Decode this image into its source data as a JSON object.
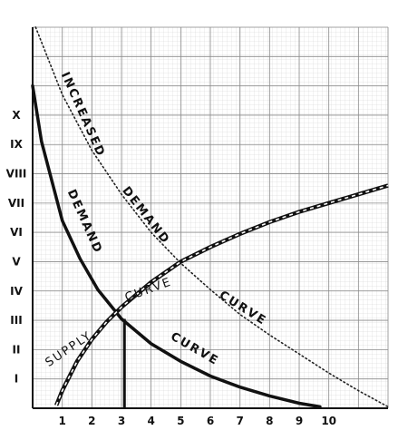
{
  "chart_data": {
    "type": "line",
    "title": "",
    "xlabel": "",
    "ylabel": "",
    "x_ticks": [
      "1",
      "2",
      "3",
      "4",
      "5",
      "6",
      "7",
      "8",
      "9",
      "10"
    ],
    "y_ticks": [
      "I",
      "II",
      "III",
      "IV",
      "V",
      "VI",
      "VII",
      "VIII",
      "IX",
      "X"
    ],
    "xlim": [
      0,
      12
    ],
    "ylim": [
      0,
      13
    ],
    "grid": true,
    "legend": "none",
    "series": [
      {
        "style": "solid",
        "x": [
          0,
          0.3,
          1,
          1.6,
          2.2,
          3,
          4,
          5,
          6,
          7,
          8,
          9,
          9.7
        ],
        "y": [
          11,
          9.1,
          6.4,
          5.1,
          4.05,
          3.05,
          2.2,
          1.6,
          1.1,
          0.72,
          0.42,
          0.17,
          0.05
        ]
      },
      {
        "style": "dotted",
        "x": [
          0.1,
          1,
          2,
          3,
          4,
          5,
          6,
          7,
          8,
          9,
          10,
          11,
          12
        ],
        "y": [
          13,
          10.7,
          8.8,
          7.3,
          6,
          4.95,
          4.05,
          3.2,
          2.5,
          1.85,
          1.2,
          0.6,
          0.05
        ]
      },
      {
        "style": "hatched",
        "x": [
          0.8,
          1,
          1.5,
          2,
          2.5,
          3,
          4,
          5,
          6,
          7,
          8,
          9,
          10,
          11,
          12
        ],
        "y": [
          0.1,
          0.6,
          1.6,
          2.35,
          2.95,
          3.45,
          4.3,
          5,
          5.5,
          5.95,
          6.35,
          6.7,
          7,
          7.3,
          7.6
        ]
      }
    ],
    "equilibrium": {
      "x": 3.1,
      "y": 3.05
    },
    "annotations": [
      {
        "id": "increased",
        "text": "INCREASED"
      },
      {
        "id": "demand_upper",
        "text": "DEMAND"
      },
      {
        "id": "demand_lower",
        "text": "DEMAND"
      },
      {
        "id": "curve_lower",
        "text": "CURVE"
      },
      {
        "id": "curve_supply",
        "text": "CURVE"
      },
      {
        "id": "curve_middle",
        "text": "CURVE"
      },
      {
        "id": "supply",
        "text": "SUPPLY"
      }
    ]
  }
}
